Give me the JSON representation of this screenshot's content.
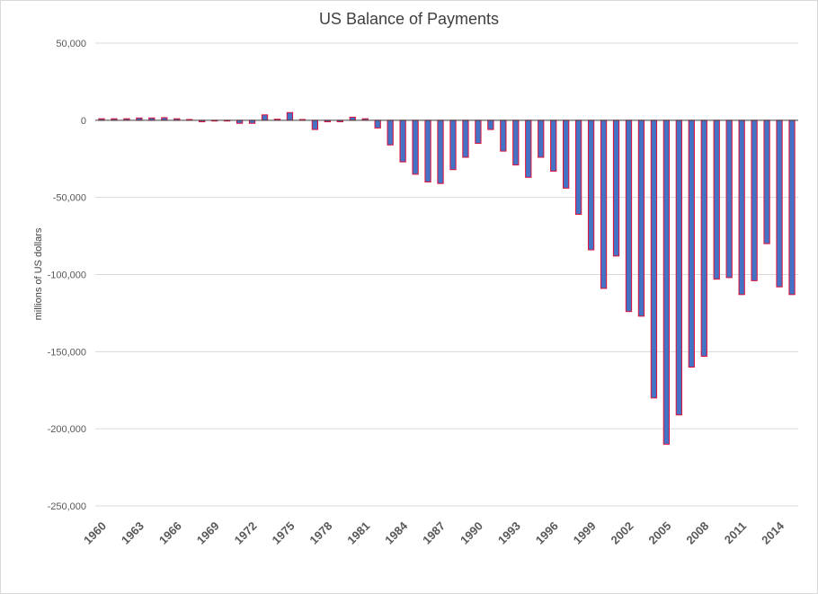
{
  "chart_data": {
    "type": "bar",
    "title": "US Balance of Payments",
    "ylabel": "millions of US dollars",
    "xlabel": "",
    "ylim": [
      -250000,
      50000
    ],
    "yticks": [
      50000,
      0,
      -50000,
      -100000,
      -150000,
      -200000,
      -250000
    ],
    "ytick_labels": [
      "50,000",
      "0",
      "-50,000",
      "-100,000",
      "-150,000",
      "-200,000",
      "-250,000"
    ],
    "xtick_labels": [
      "1960",
      "1963",
      "1966",
      "1969",
      "1972",
      "1975",
      "1978",
      "1981",
      "1984",
      "1987",
      "1990",
      "1993",
      "1996",
      "1999",
      "2002",
      "2005",
      "2008",
      "2011",
      "2014"
    ],
    "grid": true,
    "legend": "none",
    "bar_fill": "#4472c4",
    "bar_stroke": "#e0103a",
    "categories": [
      1960,
      1961,
      1962,
      1963,
      1964,
      1965,
      1966,
      1967,
      1968,
      1969,
      1970,
      1971,
      1972,
      1973,
      1974,
      1975,
      1976,
      1977,
      1978,
      1979,
      1980,
      1981,
      1982,
      1983,
      1984,
      1985,
      1986,
      1987,
      1988,
      1989,
      1990,
      1991,
      1992,
      1993,
      1994,
      1995,
      1996,
      1997,
      1998,
      1999,
      2000,
      2001,
      2002,
      2003,
      2004,
      2005,
      2006,
      2007,
      2008,
      2009,
      2010,
      2011,
      2012,
      2013,
      2014,
      2015
    ],
    "values": [
      1000,
      1000,
      1000,
      1500,
      1500,
      1700,
      1000,
      500,
      -1000,
      -500,
      -500,
      -2000,
      -2000,
      3500,
      700,
      5000,
      500,
      -6000,
      -1000,
      -1000,
      2000,
      1000,
      -5000,
      -16000,
      -27000,
      -35000,
      -40000,
      -41000,
      -32000,
      -24000,
      -15000,
      -6000,
      -20000,
      -29000,
      -37000,
      -24000,
      -33000,
      -44000,
      -61000,
      -84000,
      -109000,
      -88000,
      -124000,
      -127000,
      -180000,
      -210000,
      -191000,
      -160000,
      -153000,
      -103000,
      -102000,
      -113000,
      -104000,
      -80000,
      -108000,
      -113000
    ]
  }
}
